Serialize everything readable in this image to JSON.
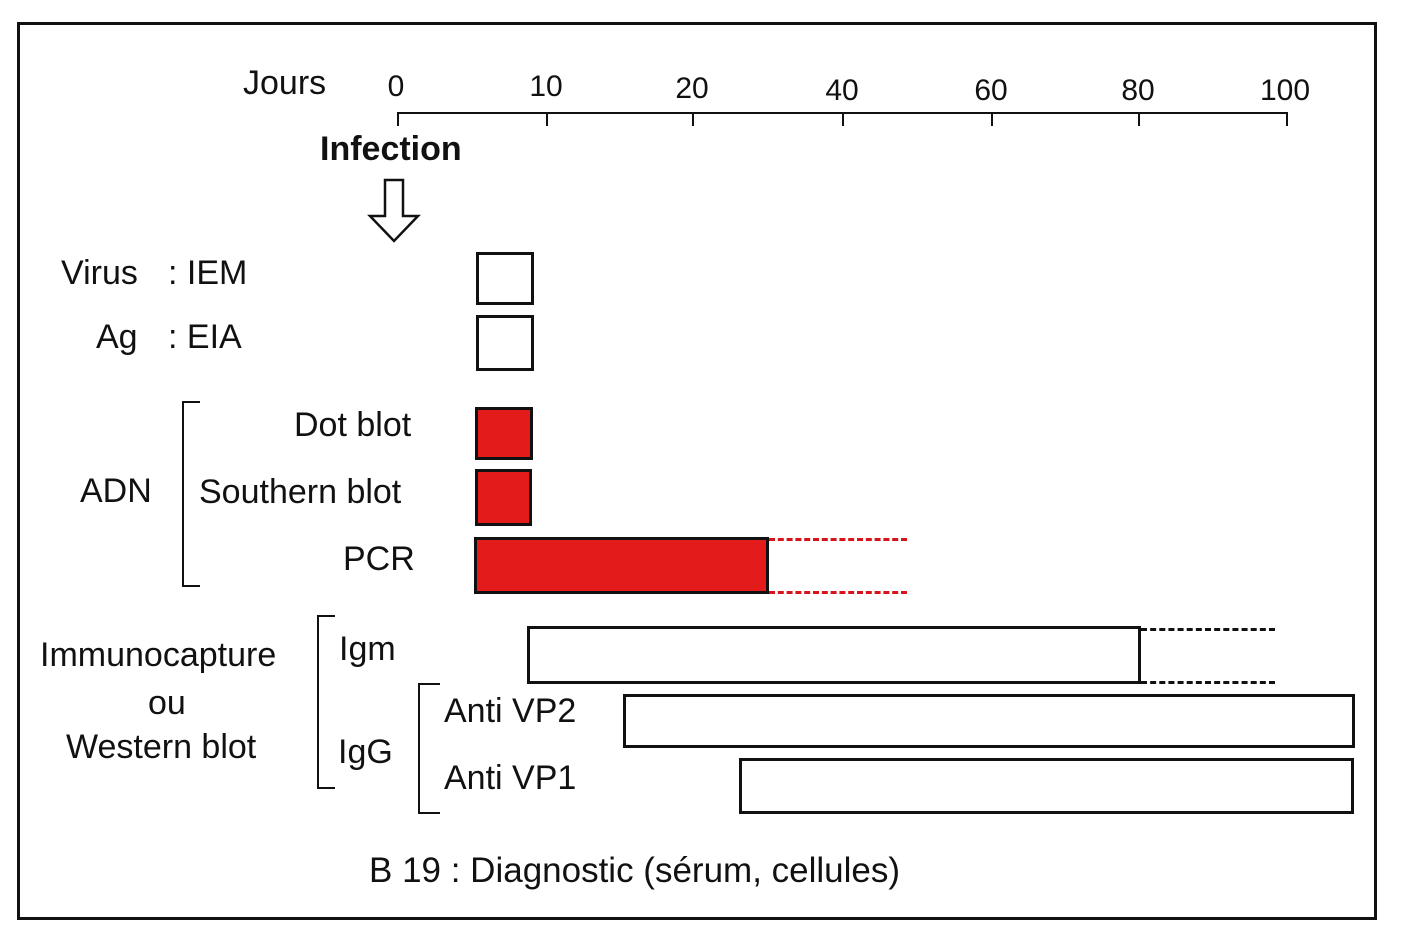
{
  "axis": {
    "label": "Jours",
    "ticks": [
      "0",
      "10",
      "20",
      "40",
      "60",
      "80",
      "100"
    ]
  },
  "infection_label": "Infection",
  "rows": {
    "virus": {
      "group": "Virus",
      "method": ": IEM"
    },
    "ag": {
      "group": "Ag",
      "method": ": EIA"
    },
    "adn": {
      "group": "ADN",
      "dot_blot": "Dot blot",
      "southern_blot": "Southern blot",
      "pcr": "PCR"
    },
    "immuno": {
      "line1": "Immunocapture",
      "line2": "ou",
      "line3": "Western blot",
      "igm": "Igm",
      "igg": "IgG",
      "anti_vp2": "Anti VP2",
      "anti_vp1": "Anti VP1"
    }
  },
  "caption": "B 19 : Diagnostic (sérum, cellules)",
  "colors": {
    "positive_fill": "#e31b1b",
    "outline": "#111111"
  },
  "icons": {
    "infection_arrow": "down-arrow-outline-icon"
  }
}
